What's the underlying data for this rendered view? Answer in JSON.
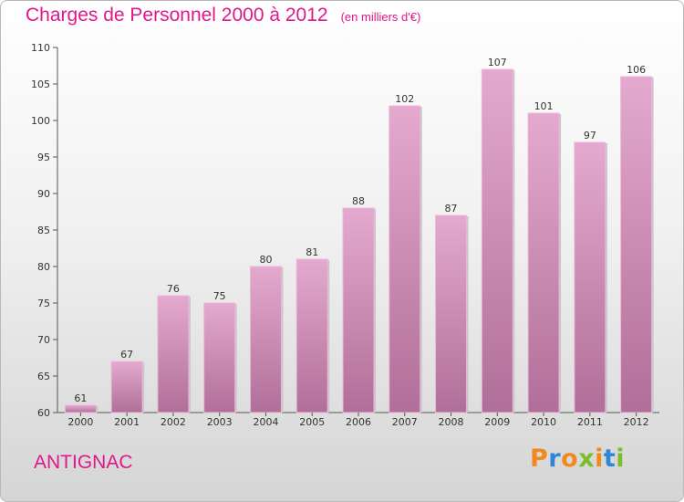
{
  "header": {
    "title": "Charges de Personnel 2000 à 2012",
    "subtitle": "(en milliers d'€)"
  },
  "commune": "ANTIGNAC",
  "logo": {
    "letters": [
      "P",
      "r",
      "o",
      "x",
      "i",
      "t",
      "i"
    ],
    "colors": [
      "#f08a1c",
      "#2e86d8",
      "#f08a1c",
      "#7bbd2b",
      "#f08a1c",
      "#2e86d8",
      "#7bbd2b"
    ]
  },
  "colors": {
    "title": "#e0188c",
    "bar_top": "#e5a9cf",
    "bar_bottom": "#b06f98"
  },
  "chart_data": {
    "type": "bar",
    "title": "Charges de Personnel 2000 à 2012",
    "subtitle": "(en milliers d'€)",
    "categories": [
      "2000",
      "2001",
      "2002",
      "2003",
      "2004",
      "2005",
      "2006",
      "2007",
      "2008",
      "2009",
      "2010",
      "2011",
      "2012"
    ],
    "values": [
      61,
      67,
      76,
      75,
      80,
      81,
      88,
      102,
      87,
      107,
      101,
      97,
      106
    ],
    "ylim": [
      60,
      110
    ],
    "yticks": [
      60,
      65,
      70,
      75,
      80,
      85,
      90,
      95,
      100,
      105,
      110
    ],
    "grid": false,
    "legend": "none"
  }
}
